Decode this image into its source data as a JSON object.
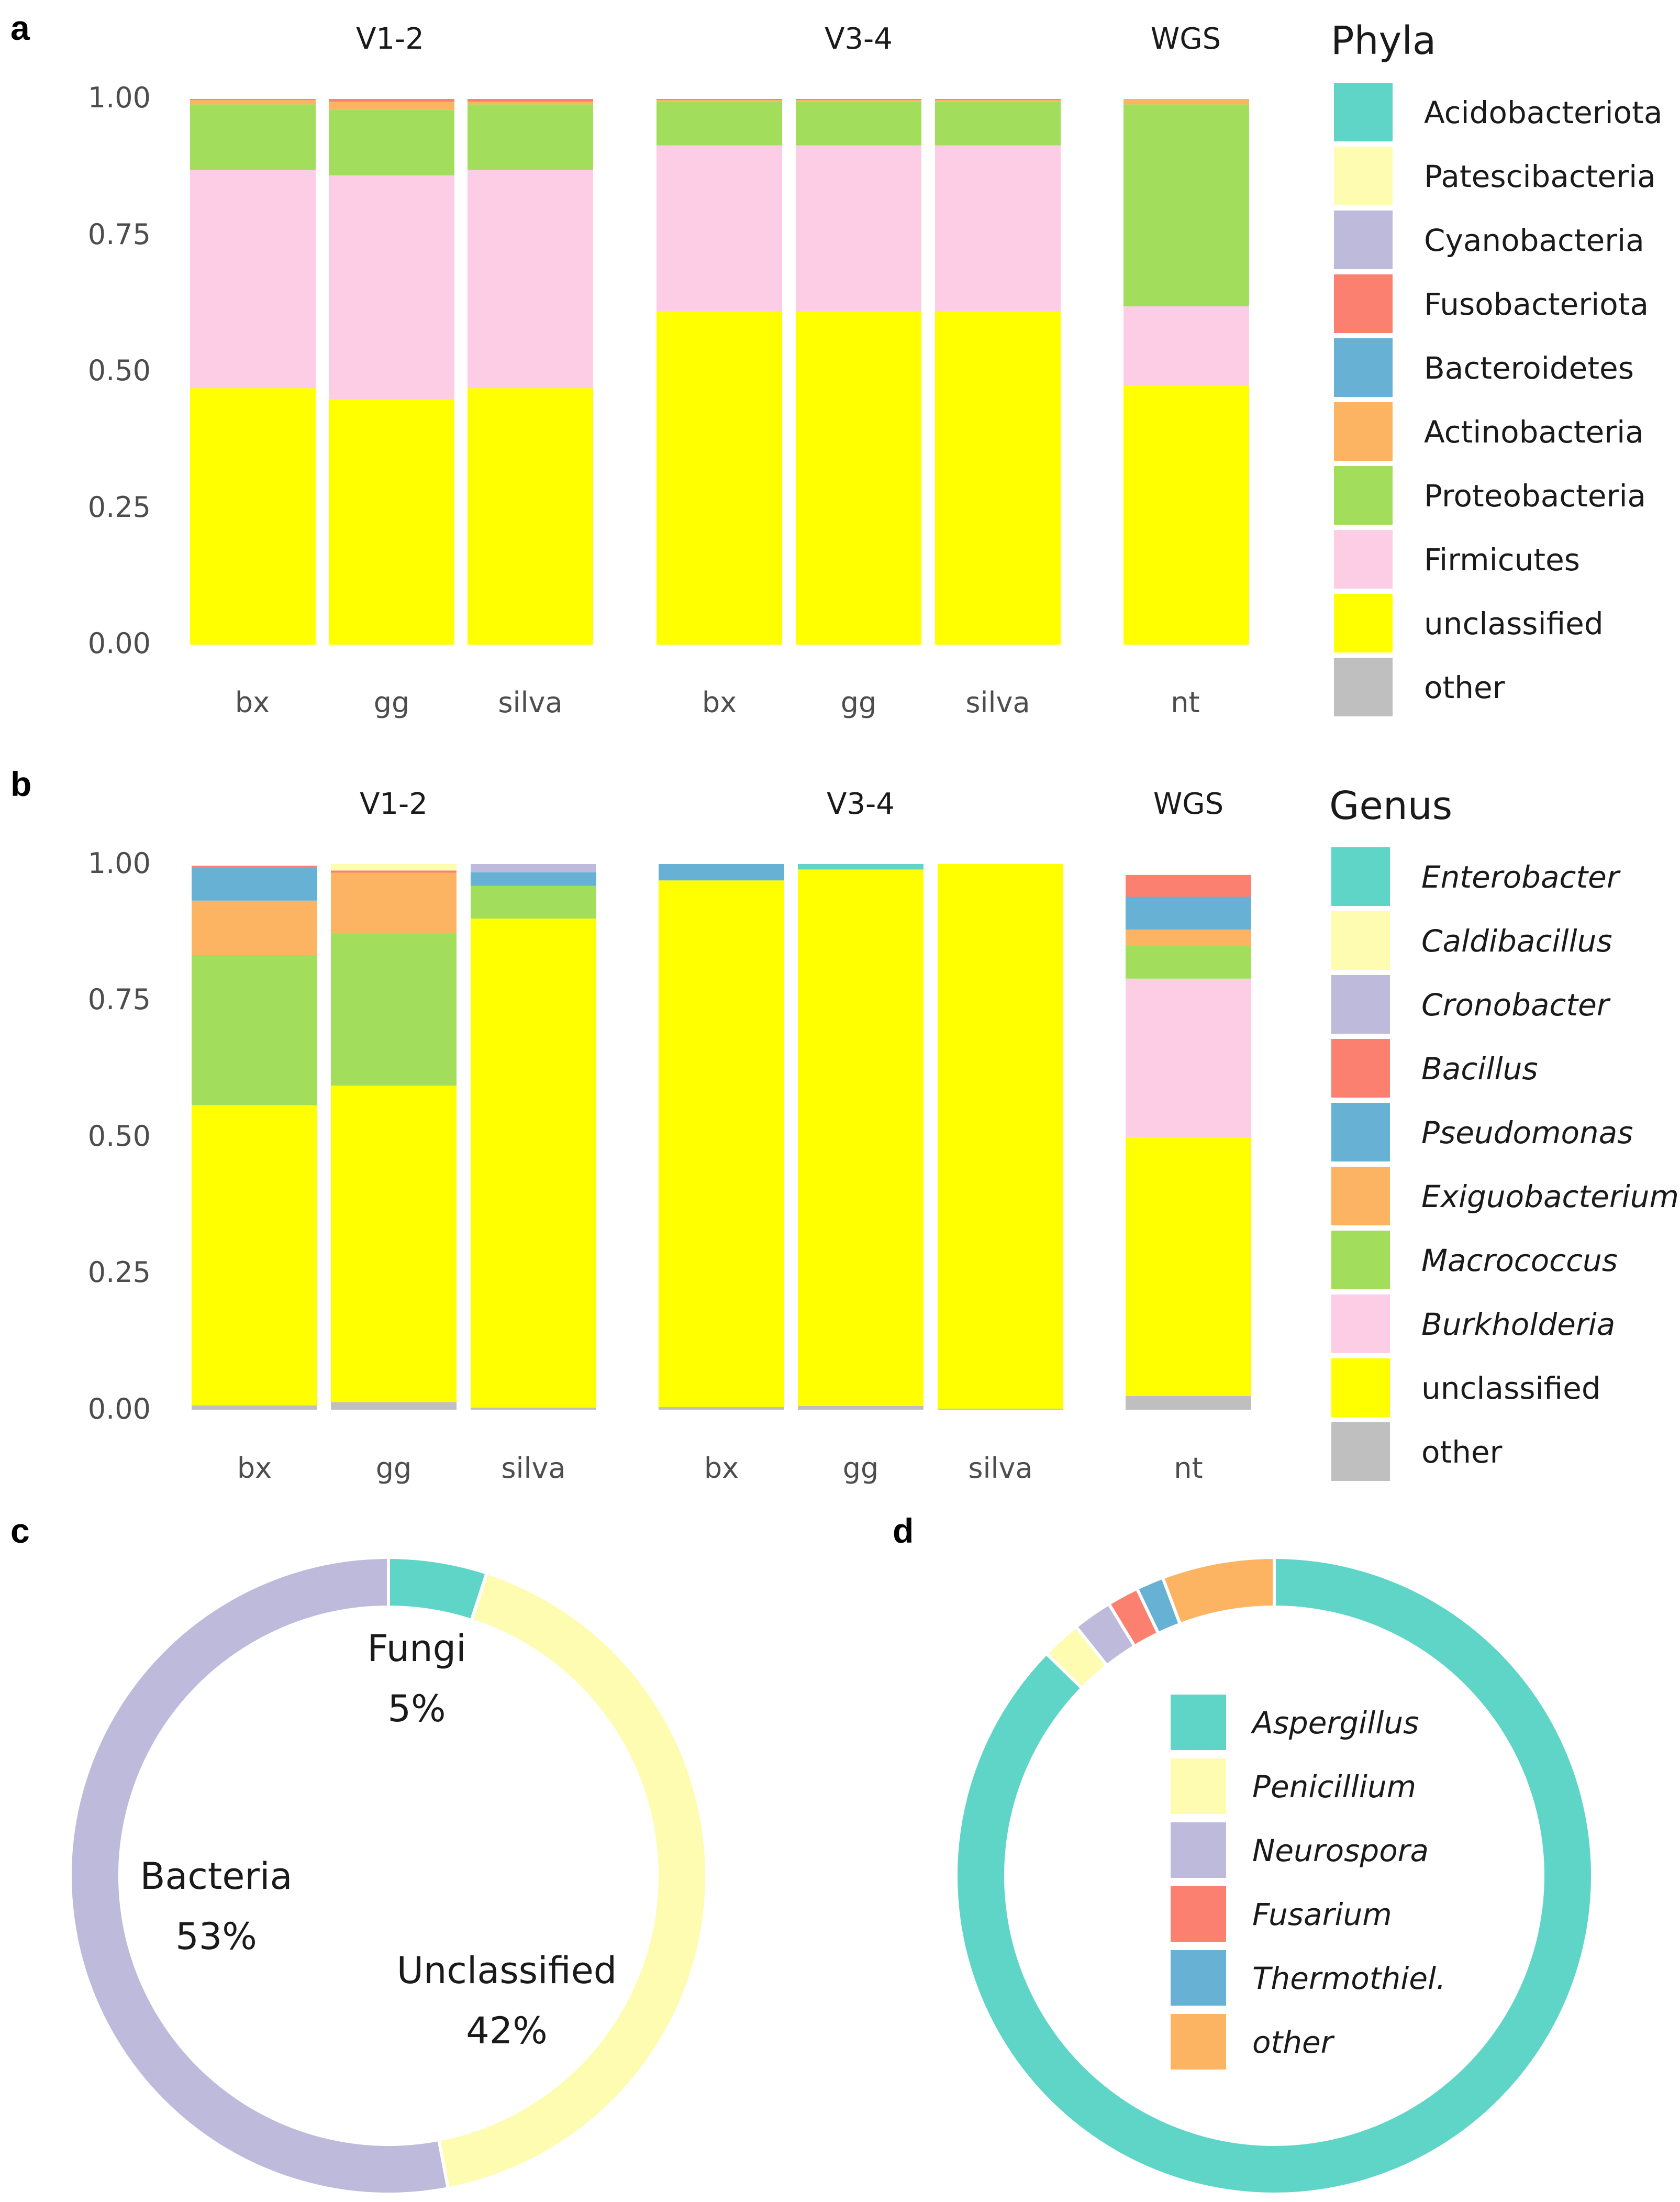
{
  "panels": {
    "a": "a",
    "b": "b",
    "c": "c",
    "d": "d"
  },
  "palette": {
    "teal": "#5fd5c8",
    "lightyellow": "#fdfcb1",
    "lavender": "#bebadb",
    "salmon": "#fb8070",
    "blue": "#66b1d4",
    "orange": "#fdb462",
    "green": "#a2dd5c",
    "pink": "#fdcde5",
    "yellow": "#ffff00",
    "grey": "#bfbfbf"
  },
  "chart_data": [
    {
      "id": "panel-a",
      "type": "bar",
      "stacked": true,
      "facets": [
        "V1-2",
        "V3-4",
        "WGS"
      ],
      "y_ticks": [
        "0.00",
        "0.25",
        "0.50",
        "0.75",
        "1.00"
      ],
      "ylim": [
        0,
        1
      ],
      "legend_title": "Phyla",
      "legend": [
        {
          "name": "Acidobacteriota",
          "color": "#5fd5c8",
          "italic": false
        },
        {
          "name": "Patescibacteria",
          "color": "#fdfcb1",
          "italic": false
        },
        {
          "name": "Cyanobacteria",
          "color": "#bebadb",
          "italic": false
        },
        {
          "name": "Fusobacteriota",
          "color": "#fb8070",
          "italic": false
        },
        {
          "name": "Bacteroidetes",
          "color": "#66b1d4",
          "italic": false
        },
        {
          "name": "Actinobacteria",
          "color": "#fdb462",
          "italic": false
        },
        {
          "name": "Proteobacteria",
          "color": "#a2dd5c",
          "italic": false
        },
        {
          "name": "Firmicutes",
          "color": "#fdcde5",
          "italic": false
        },
        {
          "name": "unclassified",
          "color": "#ffff00",
          "italic": false
        },
        {
          "name": "other",
          "color": "#bfbfbf",
          "italic": false
        }
      ],
      "bars": [
        {
          "facet": 0,
          "category": "bx",
          "segments": [
            {
              "series": "unclassified",
              "value": 0.47
            },
            {
              "series": "Firmicutes",
              "value": 0.4
            },
            {
              "series": "Proteobacteria",
              "value": 0.12
            },
            {
              "series": "Actinobacteria",
              "value": 0.008
            },
            {
              "series": "Fusobacteriota",
              "value": 0.002
            }
          ]
        },
        {
          "facet": 0,
          "category": "gg",
          "segments": [
            {
              "series": "unclassified",
              "value": 0.45
            },
            {
              "series": "Firmicutes",
              "value": 0.41
            },
            {
              "series": "Proteobacteria",
              "value": 0.12
            },
            {
              "series": "Actinobacteria",
              "value": 0.015
            },
            {
              "series": "Fusobacteriota",
              "value": 0.005
            }
          ]
        },
        {
          "facet": 0,
          "category": "silva",
          "segments": [
            {
              "series": "unclassified",
              "value": 0.47
            },
            {
              "series": "Firmicutes",
              "value": 0.4
            },
            {
              "series": "Proteobacteria",
              "value": 0.12
            },
            {
              "series": "Actinobacteria",
              "value": 0.005
            },
            {
              "series": "Fusobacteriota",
              "value": 0.005
            }
          ]
        },
        {
          "facet": 1,
          "category": "bx",
          "segments": [
            {
              "series": "unclassified",
              "value": 0.61
            },
            {
              "series": "Firmicutes",
              "value": 0.305
            },
            {
              "series": "Proteobacteria",
              "value": 0.08
            },
            {
              "series": "Actinobacteria",
              "value": 0.003
            },
            {
              "series": "Fusobacteriota",
              "value": 0.002
            }
          ]
        },
        {
          "facet": 1,
          "category": "gg",
          "segments": [
            {
              "series": "unclassified",
              "value": 0.61
            },
            {
              "series": "Firmicutes",
              "value": 0.305
            },
            {
              "series": "Proteobacteria",
              "value": 0.08
            },
            {
              "series": "Actinobacteria",
              "value": 0.003
            },
            {
              "series": "Fusobacteriota",
              "value": 0.002
            }
          ]
        },
        {
          "facet": 1,
          "category": "silva",
          "segments": [
            {
              "series": "unclassified",
              "value": 0.61
            },
            {
              "series": "Firmicutes",
              "value": 0.305
            },
            {
              "series": "Proteobacteria",
              "value": 0.08
            },
            {
              "series": "Actinobacteria",
              "value": 0.003
            },
            {
              "series": "Fusobacteriota",
              "value": 0.002
            }
          ]
        },
        {
          "facet": 2,
          "category": "nt",
          "segments": [
            {
              "series": "unclassified",
              "value": 0.475
            },
            {
              "series": "Firmicutes",
              "value": 0.145
            },
            {
              "series": "Proteobacteria",
              "value": 0.37
            },
            {
              "series": "Actinobacteria",
              "value": 0.01
            }
          ]
        }
      ]
    },
    {
      "id": "panel-b",
      "type": "bar",
      "stacked": true,
      "facets": [
        "V1-2",
        "V3-4",
        "WGS"
      ],
      "y_ticks": [
        "0.00",
        "0.25",
        "0.50",
        "0.75",
        "1.00"
      ],
      "ylim": [
        0,
        1
      ],
      "legend_title": "Genus",
      "legend": [
        {
          "name": "Enterobacter",
          "color": "#5fd5c8",
          "italic": true
        },
        {
          "name": "Caldibacillus",
          "color": "#fdfcb1",
          "italic": true
        },
        {
          "name": "Cronobacter",
          "color": "#bebadb",
          "italic": true
        },
        {
          "name": "Bacillus",
          "color": "#fb8070",
          "italic": true
        },
        {
          "name": "Pseudomonas",
          "color": "#66b1d4",
          "italic": true
        },
        {
          "name": "Exiguobacterium",
          "color": "#fdb462",
          "italic": true
        },
        {
          "name": "Macrococcus",
          "color": "#a2dd5c",
          "italic": true
        },
        {
          "name": "Burkholderia",
          "color": "#fdcde5",
          "italic": true
        },
        {
          "name": "unclassified",
          "color": "#ffff00",
          "italic": false
        },
        {
          "name": "other",
          "color": "#bfbfbf",
          "italic": false
        }
      ],
      "bars": [
        {
          "facet": 0,
          "category": "bx",
          "segments": [
            {
              "series": "other",
              "value": 0.008
            },
            {
              "series": "unclassified",
              "value": 0.55
            },
            {
              "series": "Macrococcus",
              "value": 0.275
            },
            {
              "series": "Exiguobacterium",
              "value": 0.1
            },
            {
              "series": "Pseudomonas",
              "value": 0.06
            },
            {
              "series": "Bacillus",
              "value": 0.004
            }
          ]
        },
        {
          "facet": 0,
          "category": "gg",
          "segments": [
            {
              "series": "other",
              "value": 0.014
            },
            {
              "series": "unclassified",
              "value": 0.58
            },
            {
              "series": "Macrococcus",
              "value": 0.28
            },
            {
              "series": "Exiguobacterium",
              "value": 0.11
            },
            {
              "series": "Bacillus",
              "value": 0.004
            },
            {
              "series": "Caldibacillus",
              "value": 0.012
            }
          ]
        },
        {
          "facet": 0,
          "category": "silva",
          "segments": [
            {
              "series": "other",
              "value": 0.004
            },
            {
              "series": "unclassified",
              "value": 0.896
            },
            {
              "series": "Macrococcus",
              "value": 0.06
            },
            {
              "series": "Pseudomonas",
              "value": 0.025
            },
            {
              "series": "Cronobacter",
              "value": 0.015
            }
          ]
        },
        {
          "facet": 1,
          "category": "bx",
          "segments": [
            {
              "series": "other",
              "value": 0.005
            },
            {
              "series": "unclassified",
              "value": 0.965
            },
            {
              "series": "Pseudomonas",
              "value": 0.03
            }
          ]
        },
        {
          "facet": 1,
          "category": "gg",
          "segments": [
            {
              "series": "other",
              "value": 0.007
            },
            {
              "series": "unclassified",
              "value": 0.983
            },
            {
              "series": "Enterobacter",
              "value": 0.01
            }
          ]
        },
        {
          "facet": 1,
          "category": "silva",
          "segments": [
            {
              "series": "other",
              "value": 0.002
            },
            {
              "series": "unclassified",
              "value": 0.998
            }
          ]
        },
        {
          "facet": 2,
          "category": "nt",
          "segments": [
            {
              "series": "other",
              "value": 0.025
            },
            {
              "series": "unclassified",
              "value": 0.475
            },
            {
              "series": "Burkholderia",
              "value": 0.29
            },
            {
              "series": "Macrococcus",
              "value": 0.06
            },
            {
              "series": "Exiguobacterium",
              "value": 0.03
            },
            {
              "series": "Pseudomonas",
              "value": 0.06
            },
            {
              "series": "Bacillus",
              "value": 0.04
            }
          ]
        }
      ]
    },
    {
      "id": "panel-c",
      "type": "pie",
      "donut": true,
      "slices": [
        {
          "name": "Fungi",
          "label": "Fungi",
          "percent_label": "5%",
          "value": 5,
          "color": "#5fd5c8"
        },
        {
          "name": "Unclassified",
          "label": "Unclassified",
          "percent_label": "42%",
          "value": 42,
          "color": "#fdfcb1"
        },
        {
          "name": "Bacteria",
          "label": "Bacteria",
          "percent_label": "53%",
          "value": 53,
          "color": "#bebadb"
        }
      ]
    },
    {
      "id": "panel-d",
      "type": "pie",
      "donut": true,
      "slices": [
        {
          "name": "Aspergillus",
          "value": 87.3,
          "color": "#5fd5c8"
        },
        {
          "name": "Penicillium",
          "value": 2.0,
          "color": "#fdfcb1"
        },
        {
          "name": "Neurospora",
          "value": 2.0,
          "color": "#bebadb"
        },
        {
          "name": "Fusarium",
          "value": 1.6,
          "color": "#fb8070"
        },
        {
          "name": "Thermothiel.",
          "value": 1.4,
          "color": "#66b1d4"
        },
        {
          "name": "other",
          "value": 5.7,
          "color": "#fdb462"
        }
      ],
      "legend": [
        {
          "name": "Aspergillus",
          "color": "#5fd5c8",
          "italic": true
        },
        {
          "name": "Penicillium",
          "color": "#fdfcb1",
          "italic": true
        },
        {
          "name": "Neurospora",
          "color": "#bebadb",
          "italic": true
        },
        {
          "name": "Fusarium",
          "color": "#fb8070",
          "italic": true
        },
        {
          "name": "Thermothiel.",
          "color": "#66b1d4",
          "italic": true
        },
        {
          "name": "other",
          "color": "#fdb462",
          "italic": true
        }
      ]
    }
  ]
}
